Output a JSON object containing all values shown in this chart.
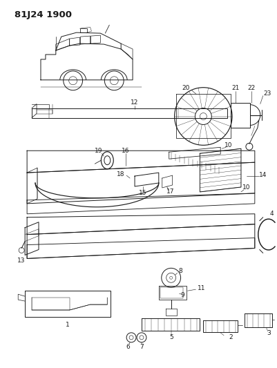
{
  "title": "81J24 1900",
  "bg_color": "#ffffff",
  "fig_width": 4.01,
  "fig_height": 5.33,
  "dpi": 100,
  "line_color": "#1a1a1a",
  "label_fontsize": 6.5,
  "title_fontsize": 9.5
}
